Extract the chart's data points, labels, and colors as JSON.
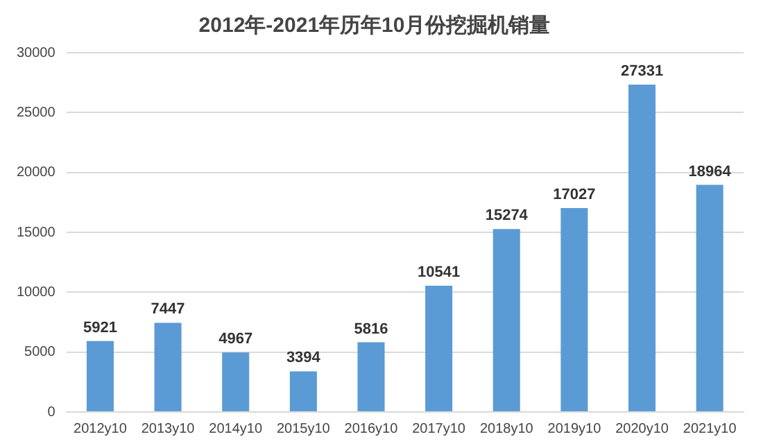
{
  "chart_data": {
    "type": "bar",
    "title": "2012年-2021年历年10月份挖掘机销量",
    "categories": [
      "2012y10",
      "2013y10",
      "2014y10",
      "2015y10",
      "2016y10",
      "2017y10",
      "2018y10",
      "2019y10",
      "2020y10",
      "2021y10"
    ],
    "values": [
      5921,
      7447,
      4967,
      3394,
      5816,
      10541,
      15274,
      17027,
      27331,
      18964
    ],
    "color": "#5b9bd5",
    "ylim": [
      0,
      30000
    ],
    "yticks": [
      0,
      5000,
      10000,
      15000,
      20000,
      25000,
      30000
    ],
    "grid": "y",
    "data_labels": true,
    "legend": false
  }
}
